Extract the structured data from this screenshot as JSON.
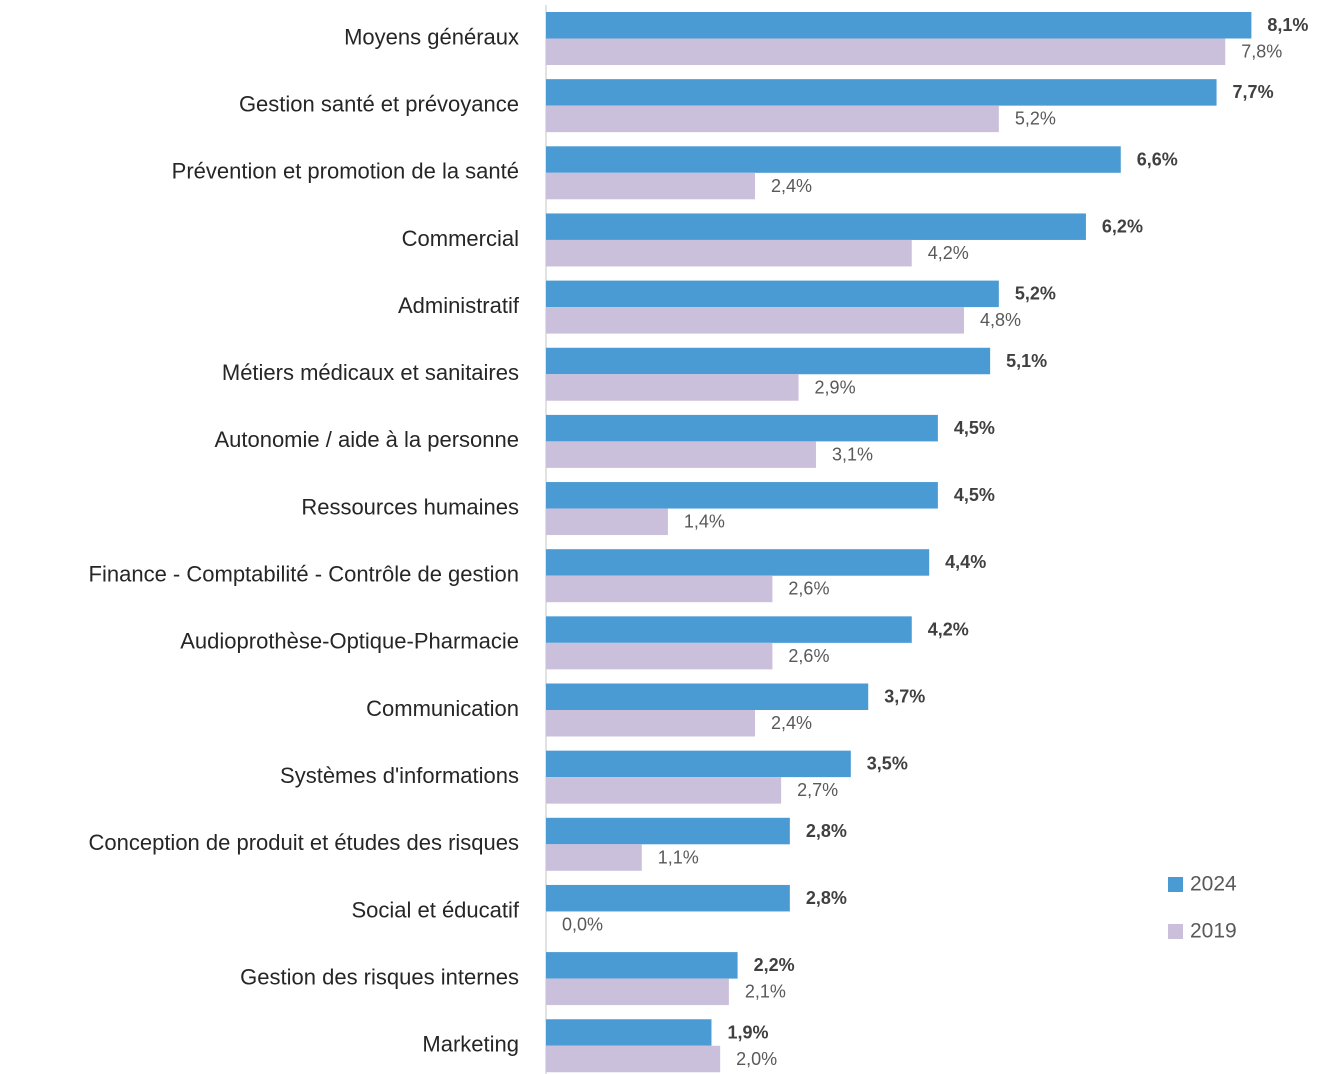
{
  "chart_data": {
    "type": "bar",
    "orientation": "horizontal",
    "categories": [
      "Moyens généraux",
      "Gestion santé et prévoyance",
      "Prévention et promotion de la santé",
      "Commercial",
      "Administratif",
      "Métiers médicaux et sanitaires",
      "Autonomie / aide à la personne",
      "Ressources humaines",
      "Finance - Comptabilité - Contrôle de gestion",
      "Audioprothèse-Optique-Pharmacie",
      "Communication",
      "Systèmes d'informations",
      "Conception de produit et études des risques",
      "Social et éducatif",
      "Gestion des risques internes",
      "Marketing"
    ],
    "series": [
      {
        "name": "2024",
        "color": "#4a9bd4",
        "values": [
          8.1,
          7.7,
          6.6,
          6.2,
          5.2,
          5.1,
          4.5,
          4.5,
          4.4,
          4.2,
          3.7,
          3.5,
          2.8,
          2.8,
          2.2,
          1.9
        ],
        "value_labels": [
          "8,1%",
          "7,7%",
          "6,6%",
          "6,2%",
          "5,2%",
          "5,1%",
          "4,5%",
          "4,5%",
          "4,4%",
          "4,2%",
          "3,7%",
          "3,5%",
          "2,8%",
          "2,8%",
          "2,2%",
          "1,9%"
        ]
      },
      {
        "name": "2019",
        "color": "#cbc0dc",
        "values": [
          7.8,
          5.2,
          2.4,
          4.2,
          4.8,
          2.9,
          3.1,
          1.4,
          2.6,
          2.6,
          2.4,
          2.7,
          1.1,
          0.0,
          2.1,
          2.0
        ],
        "value_labels": [
          "7,8%",
          "5,2%",
          "2,4%",
          "4,2%",
          "4,8%",
          "2,9%",
          "3,1%",
          "1,4%",
          "2,6%",
          "2,6%",
          "2,4%",
          "2,7%",
          "1,1%",
          "0,0%",
          "2,1%",
          "2,0%"
        ]
      }
    ],
    "xlim": [
      0,
      8.75
    ],
    "legend": "right"
  }
}
